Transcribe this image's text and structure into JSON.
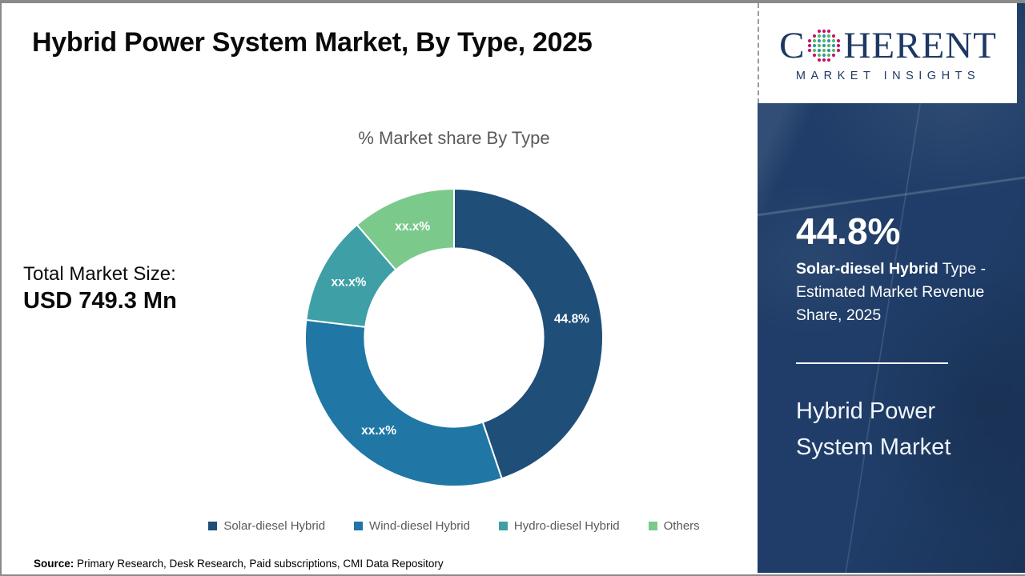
{
  "header": {
    "title": "Hybrid Power System Market, By Type, 2025"
  },
  "logo": {
    "brand_prefix": "C",
    "brand_suffix": "HERENT",
    "tagline": "MARKET INSIGHTS",
    "navy": "#1e3864",
    "dot_colors": {
      "teal": "#2b9aa5",
      "green": "#5eb95e",
      "magenta": "#c2156f"
    }
  },
  "summary": {
    "total_label": "Total Market Size:",
    "total_value": "USD 749.3 Mn"
  },
  "chart_data": {
    "type": "pie",
    "subtype": "donut",
    "title": "% Market share By Type",
    "categories": [
      "Solar-diesel Hybrid",
      "Wind-diesel Hybrid",
      "Hydro-diesel Hybrid",
      "Others"
    ],
    "values": [
      44.8,
      32.1,
      11.8,
      11.3
    ],
    "slice_labels": [
      "44.8%",
      "xx.x%",
      "xx.x%",
      "xx.x%"
    ],
    "colors": [
      "#1f4e79",
      "#2077a5",
      "#3f9fa6",
      "#7cc98c"
    ],
    "hole_ratio": 0.6,
    "start_angle_deg": 0,
    "direction": "clockwise",
    "legend_position": "bottom",
    "label_color": "#ffffff"
  },
  "sidebar": {
    "stat_value": "44.8%",
    "stat_desc_bold": "Solar-diesel Hybrid",
    "stat_desc_rest": " Type - Estimated Market Revenue Share, 2025",
    "market_name": "Hybrid Power System Market"
  },
  "footer": {
    "source_label": "Source:",
    "source_text": " Primary Research, Desk Research, Paid subscriptions, CMI Data Repository"
  }
}
